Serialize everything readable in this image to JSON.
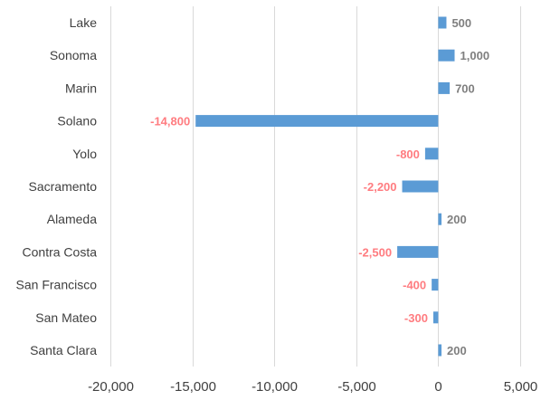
{
  "chart_data": {
    "type": "bar",
    "orientation": "horizontal",
    "categories": [
      "Lake",
      "Sonoma",
      "Marin",
      "Solano",
      "Yolo",
      "Sacramento",
      "Alameda",
      "Contra Costa",
      "San Francisco",
      "San Mateo",
      "Santa Clara"
    ],
    "values": [
      500,
      1000,
      700,
      -14800,
      -800,
      -2200,
      200,
      -2500,
      -400,
      -300,
      200
    ],
    "data_labels": [
      "500",
      "1,000",
      "700",
      "-14,800",
      "-800",
      "-2,200",
      "200",
      "-2,500",
      "-400",
      "-300",
      "200"
    ],
    "xlim": [
      -20000,
      5000
    ],
    "x_ticks": [
      -20000,
      -15000,
      -10000,
      -5000,
      0,
      5000
    ],
    "x_tick_labels": [
      "-20,000",
      "-15,000",
      "-10,000",
      "-5,000",
      "0",
      "5,000"
    ],
    "grid": "vertical",
    "title": "",
    "xlabel": "",
    "ylabel": "",
    "colors": {
      "bar": "#5b9bd5",
      "positive_label": "#7f7f7f",
      "negative_label": "#ff7c80"
    }
  }
}
